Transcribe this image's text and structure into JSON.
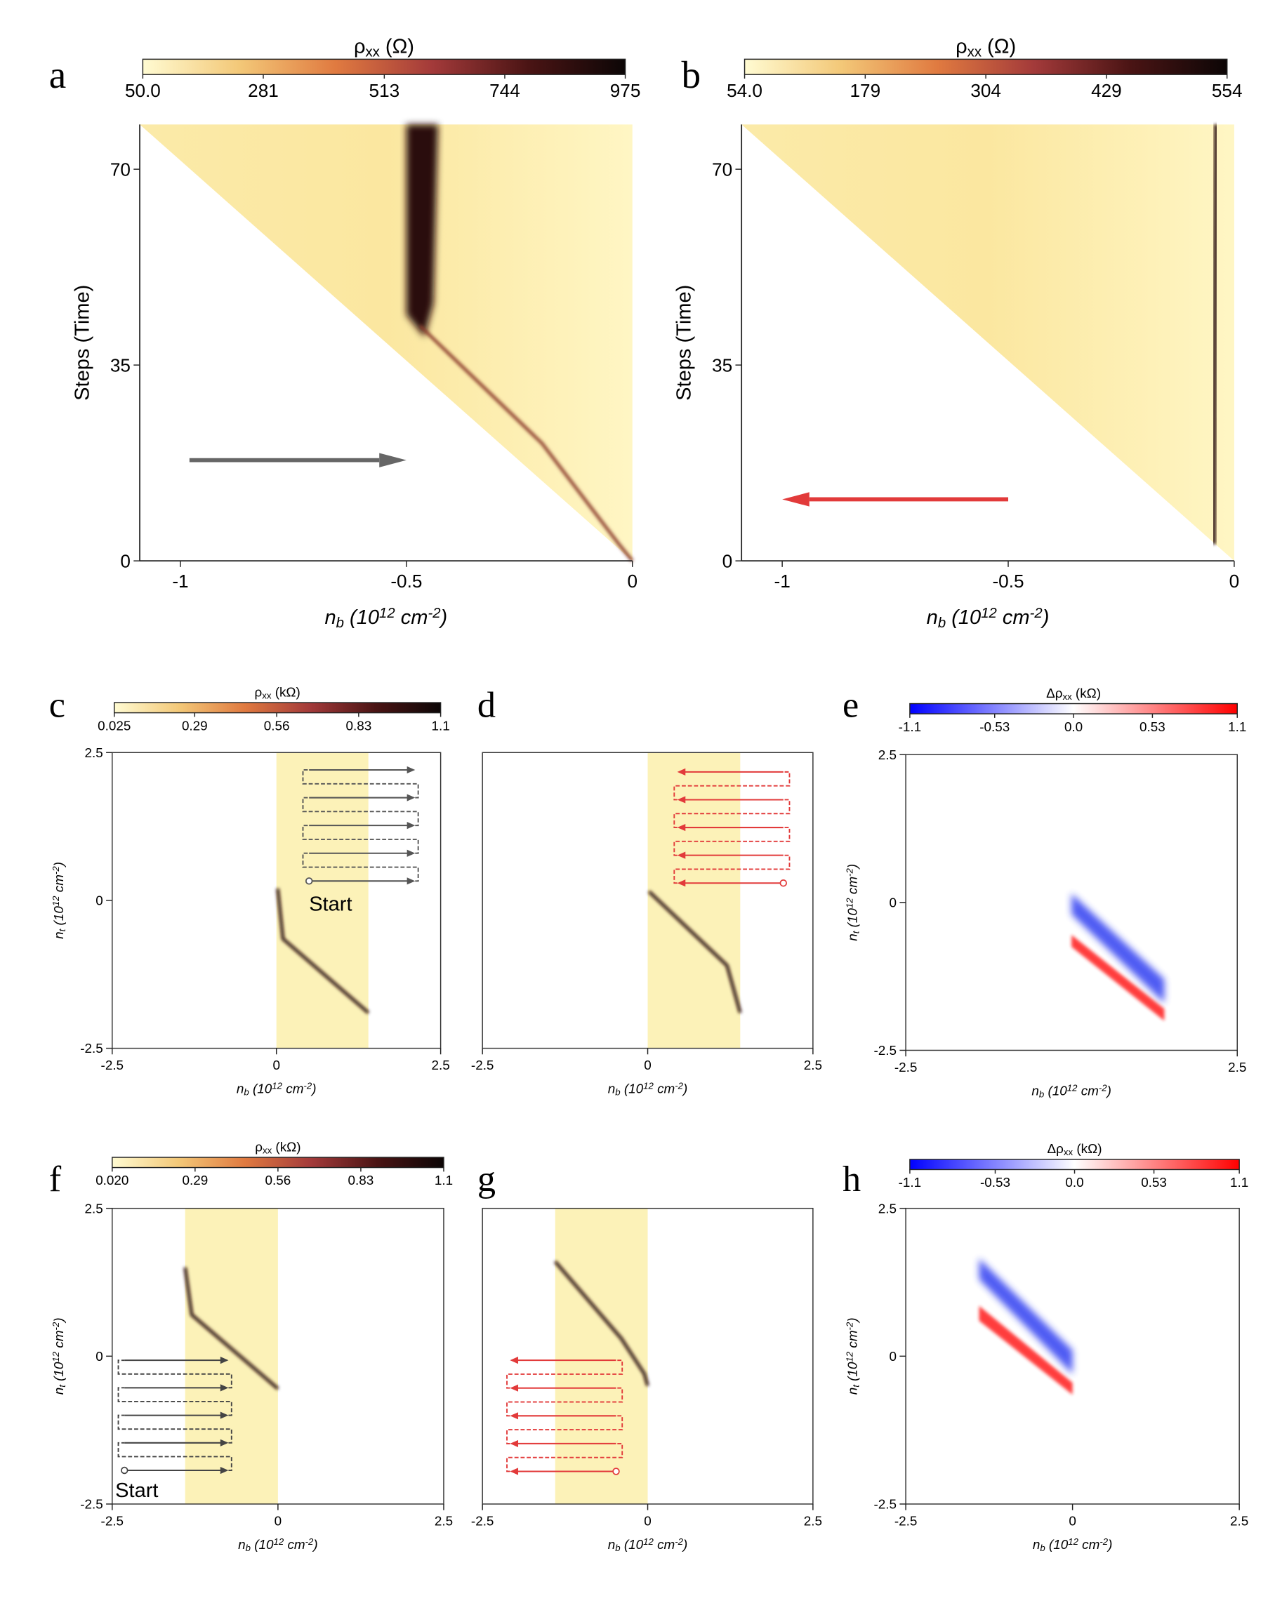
{
  "chart_data": [
    {
      "type": "heatmap",
      "panel": "a",
      "colorbar": {
        "label": [
          {
            "text": "ρ"
          },
          {
            "text": "xx",
            "shift": "sub"
          },
          {
            "text": " (Ω)"
          }
        ],
        "clim": [
          50,
          975
        ],
        "ticks": [
          {
            "value": 50,
            "label": "50.0"
          },
          281,
          513,
          744,
          975
        ],
        "colormap": [
          "#fffbd2",
          "#f3c878",
          "#e07a40",
          "#a33a3a",
          "#4a1414",
          "#0c0606"
        ]
      },
      "xlabel": [
        {
          "text": "n"
        },
        {
          "text": "b",
          "shift": "sub"
        },
        {
          "text": " (10"
        },
        {
          "text": "12",
          "shift": "sup"
        },
        {
          "text": " cm"
        },
        {
          "text": "-2",
          "shift": "sup"
        },
        {
          "text": ")"
        }
      ],
      "ylabel": [
        {
          "text": "Steps (Time)"
        }
      ],
      "xlim": [
        -1.09,
        0
      ],
      "xticks": [
        -1,
        -0.5,
        0
      ],
      "ylim": [
        0,
        78
      ],
      "yticks": [
        0,
        35,
        70
      ],
      "box": false
    },
    {
      "type": "heatmap",
      "panel": "b",
      "colorbar": {
        "label": [
          {
            "text": "ρ"
          },
          {
            "text": "xx",
            "shift": "sub"
          },
          {
            "text": " (Ω)"
          }
        ],
        "clim": [
          54,
          554
        ],
        "ticks": [
          {
            "value": 54,
            "label": "54.0"
          },
          179,
          304,
          429,
          554
        ],
        "colormap": [
          "#fffbd2",
          "#f3c878",
          "#e07a40",
          "#a33a3a",
          "#4a1414",
          "#0c0606"
        ]
      },
      "xlabel": [
        {
          "text": "n"
        },
        {
          "text": "b",
          "shift": "sub"
        },
        {
          "text": " (10"
        },
        {
          "text": "12",
          "shift": "sup"
        },
        {
          "text": " cm"
        },
        {
          "text": "-2",
          "shift": "sup"
        },
        {
          "text": ")"
        }
      ],
      "ylabel": [
        {
          "text": "Steps (Time)"
        }
      ],
      "xlim": [
        -1.09,
        0
      ],
      "xticks": [
        -1,
        -0.5,
        0
      ],
      "ylim": [
        0,
        78
      ],
      "yticks": [
        0,
        35,
        70
      ],
      "box": false
    },
    {
      "type": "heatmap",
      "panel": "c",
      "colorbar": {
        "label": [
          {
            "text": "ρ"
          },
          {
            "text": "xx",
            "shift": "sub"
          },
          {
            "text": " (kΩ)"
          }
        ],
        "clim": [
          0.025,
          1.1
        ],
        "ticks": [
          0.025,
          0.29,
          0.56,
          0.83,
          1.1
        ],
        "colormap": [
          "#fffbd2",
          "#f3c878",
          "#e07a40",
          "#a33a3a",
          "#4a1414",
          "#0c0606"
        ]
      },
      "xlabel": [
        {
          "text": "n"
        },
        {
          "text": "b",
          "shift": "sub"
        },
        {
          "text": " (10"
        },
        {
          "text": "12",
          "shift": "sup"
        },
        {
          "text": " cm"
        },
        {
          "text": "-2",
          "shift": "sup"
        },
        {
          "text": ")"
        }
      ],
      "ylabel": [
        {
          "text": "n"
        },
        {
          "text": "t",
          "shift": "sub"
        },
        {
          "text": " (10"
        },
        {
          "text": "12",
          "shift": "sup"
        },
        {
          "text": " cm"
        },
        {
          "text": "-2",
          "shift": "sup"
        },
        {
          "text": ")"
        }
      ],
      "xlim": [
        -2.5,
        2.5
      ],
      "xticks": [
        -2.5,
        0,
        2.5
      ],
      "ylim": [
        -2.5,
        2.5
      ],
      "yticks": [
        -2.5,
        0,
        2.5
      ],
      "box": true,
      "annotation": "Start"
    },
    {
      "type": "heatmap",
      "panel": "d",
      "xlabel": [
        {
          "text": "n"
        },
        {
          "text": "b",
          "shift": "sub"
        },
        {
          "text": " (10"
        },
        {
          "text": "12",
          "shift": "sup"
        },
        {
          "text": " cm"
        },
        {
          "text": "-2",
          "shift": "sup"
        },
        {
          "text": ")"
        }
      ],
      "xlim": [
        -2.5,
        2.5
      ],
      "xticks": [
        -2.5,
        0,
        2.5
      ],
      "ylim": [
        -2.5,
        2.5
      ],
      "box": true
    },
    {
      "type": "heatmap",
      "panel": "e",
      "colorbar": {
        "label": [
          {
            "text": "Δρ"
          },
          {
            "text": "xx",
            "shift": "sub"
          },
          {
            "text": " (kΩ)"
          }
        ],
        "clim": [
          -1.1,
          1.1
        ],
        "ticks": [
          -1.1,
          -0.53,
          {
            "value": 0,
            "label": "0.0"
          },
          0.53,
          1.1
        ],
        "colormap": [
          "#0000ff",
          "#ffffff",
          "#ff0000"
        ]
      },
      "xlabel": [
        {
          "text": "n"
        },
        {
          "text": "b",
          "shift": "sub"
        },
        {
          "text": " (10"
        },
        {
          "text": "12",
          "shift": "sup"
        },
        {
          "text": " cm"
        },
        {
          "text": "-2",
          "shift": "sup"
        },
        {
          "text": ")"
        }
      ],
      "ylabel": [
        {
          "text": "n"
        },
        {
          "text": "t",
          "shift": "sub"
        },
        {
          "text": " (10"
        },
        {
          "text": "12",
          "shift": "sup"
        },
        {
          "text": " cm"
        },
        {
          "text": "-2",
          "shift": "sup"
        },
        {
          "text": ")"
        }
      ],
      "xlim": [
        -2.5,
        2.5
      ],
      "xticks": [
        -2.5,
        2.5
      ],
      "ylim": [
        -2.5,
        2.5
      ],
      "yticks": [
        -2.5,
        0,
        2.5
      ],
      "box": true
    },
    {
      "type": "heatmap",
      "panel": "f",
      "colorbar": {
        "label": [
          {
            "text": "ρ"
          },
          {
            "text": "xx",
            "shift": "sub"
          },
          {
            "text": " (kΩ)"
          }
        ],
        "clim": [
          0.02,
          1.1
        ],
        "ticks": [
          {
            "value": 0.02,
            "label": "0.020"
          },
          0.29,
          0.56,
          0.83,
          1.1
        ],
        "colormap": [
          "#fffbd2",
          "#f3c878",
          "#e07a40",
          "#a33a3a",
          "#4a1414",
          "#0c0606"
        ]
      },
      "xlabel": [
        {
          "text": "n"
        },
        {
          "text": "b",
          "shift": "sub"
        },
        {
          "text": " (10"
        },
        {
          "text": "12",
          "shift": "sup"
        },
        {
          "text": " cm"
        },
        {
          "text": "-2",
          "shift": "sup"
        },
        {
          "text": ")"
        }
      ],
      "ylabel": [
        {
          "text": "n"
        },
        {
          "text": "t",
          "shift": "sub"
        },
        {
          "text": " (10"
        },
        {
          "text": "12",
          "shift": "sup"
        },
        {
          "text": " cm"
        },
        {
          "text": "-2",
          "shift": "sup"
        },
        {
          "text": ")"
        }
      ],
      "xlim": [
        -2.5,
        2.5
      ],
      "xticks": [
        -2.5,
        0,
        2.5
      ],
      "ylim": [
        -2.5,
        2.5
      ],
      "yticks": [
        -2.5,
        0,
        2.5
      ],
      "box": true,
      "annotation": "Start"
    },
    {
      "type": "heatmap",
      "panel": "g",
      "xlabel": [
        {
          "text": "n"
        },
        {
          "text": "b",
          "shift": "sub"
        },
        {
          "text": " (10"
        },
        {
          "text": "12",
          "shift": "sup"
        },
        {
          "text": " cm"
        },
        {
          "text": "-2",
          "shift": "sup"
        },
        {
          "text": ")"
        }
      ],
      "xlim": [
        -2.5,
        2.5
      ],
      "xticks": [
        -2.5,
        0,
        2.5
      ],
      "ylim": [
        -2.5,
        2.5
      ],
      "box": true
    },
    {
      "type": "heatmap",
      "panel": "h",
      "colorbar": {
        "label": [
          {
            "text": "Δρ"
          },
          {
            "text": "xx",
            "shift": "sub"
          },
          {
            "text": " (kΩ)"
          }
        ],
        "clim": [
          -1.1,
          1.1
        ],
        "ticks": [
          -1.1,
          -0.53,
          {
            "value": 0,
            "label": "0.0"
          },
          0.53,
          1.1
        ],
        "colormap": [
          "#0000ff",
          "#ffffff",
          "#ff0000"
        ]
      },
      "xlabel": [
        {
          "text": "n"
        },
        {
          "text": "b",
          "shift": "sub"
        },
        {
          "text": " (10"
        },
        {
          "text": "12",
          "shift": "sup"
        },
        {
          "text": " cm"
        },
        {
          "text": "-2",
          "shift": "sup"
        },
        {
          "text": ")"
        }
      ],
      "ylabel": [
        {
          "text": "n"
        },
        {
          "text": "t",
          "shift": "sub"
        },
        {
          "text": " (10"
        },
        {
          "text": "12",
          "shift": "sup"
        },
        {
          "text": " cm"
        },
        {
          "text": "-2",
          "shift": "sup"
        },
        {
          "text": ")"
        }
      ],
      "xlim": [
        -2.5,
        2.5
      ],
      "xticks": [
        -2.5,
        0,
        2.5
      ],
      "ylim": [
        -2.5,
        2.5
      ],
      "yticks": [
        -2.5,
        0,
        2.5
      ],
      "box": true
    }
  ]
}
